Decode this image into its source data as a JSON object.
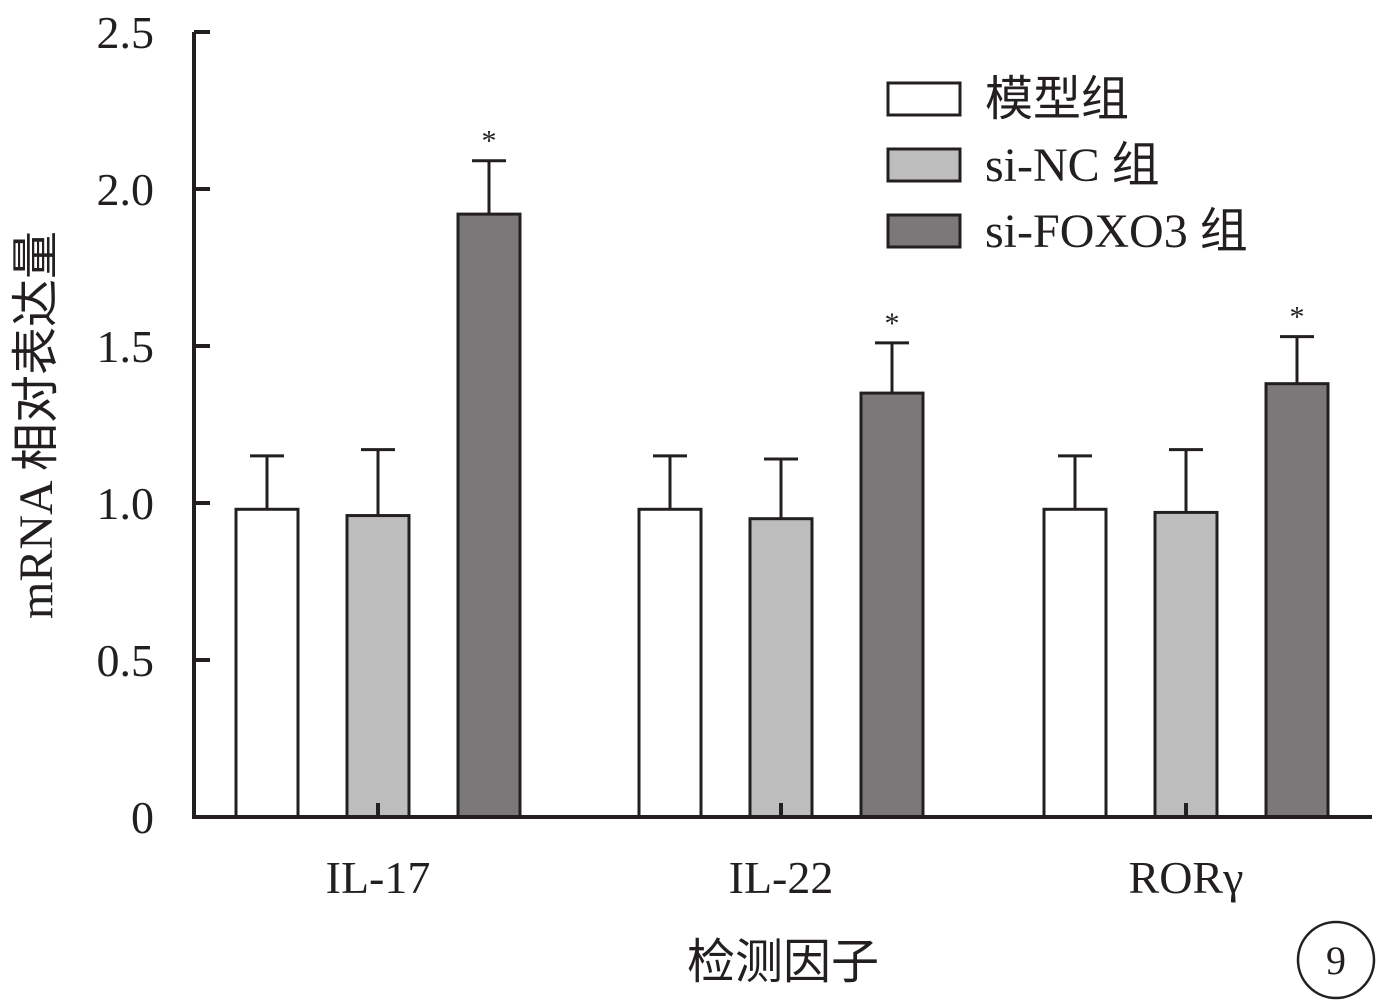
{
  "chart_data": {
    "type": "bar",
    "xlabel": "检测因子",
    "ylabel": "mRNA 相对表达量",
    "ylim": [
      0,
      2.5
    ],
    "yticks": [
      0,
      0.5,
      1.0,
      1.5,
      2.0,
      2.5
    ],
    "ytick_labels": [
      "0",
      "0.5",
      "1.0",
      "1.5",
      "2.0",
      "2.5"
    ],
    "categories": [
      "IL-17",
      "IL-22",
      "RORγ"
    ],
    "series": [
      {
        "name": "模型组",
        "color": "#ffffff",
        "values": [
          0.98,
          0.98,
          0.98
        ],
        "errors": [
          0.17,
          0.17,
          0.17
        ],
        "marks": [
          "",
          "",
          ""
        ]
      },
      {
        "name": "si-NC 组",
        "color": "#bdbdbd",
        "values": [
          0.96,
          0.95,
          0.97
        ],
        "errors": [
          0.21,
          0.19,
          0.2
        ],
        "marks": [
          "",
          "",
          ""
        ]
      },
      {
        "name": "si-FOXO3 组",
        "color": "#7a7878",
        "values": [
          1.92,
          1.35,
          1.38
        ],
        "errors": [
          0.17,
          0.16,
          0.15
        ],
        "marks": [
          "*",
          "*",
          "*"
        ]
      }
    ],
    "legend_position": "top-right",
    "grid": false
  },
  "panel_label": "9"
}
